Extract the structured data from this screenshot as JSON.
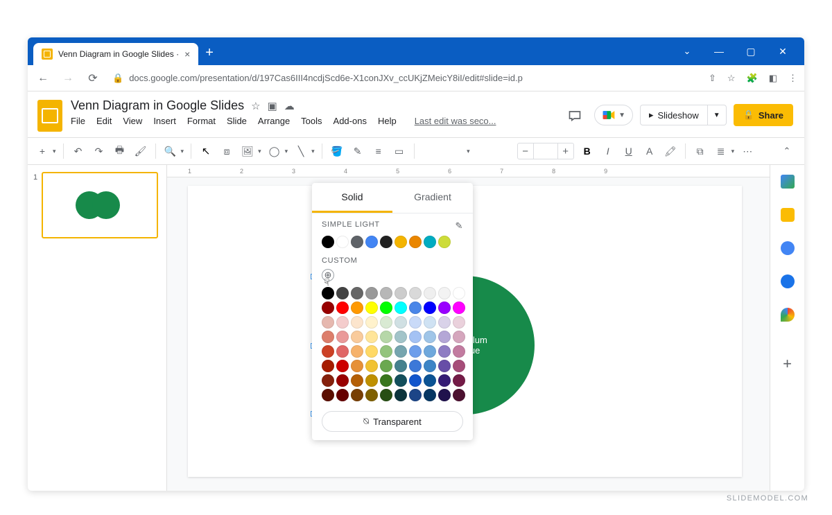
{
  "browser": {
    "tab_title": "Venn Diagram in Google Slides ·",
    "url": "docs.google.com/presentation/d/197Cas6III4ncdjScd6e-X1conJXv_ccUKjZMeicY8iI/edit#slide=id.p"
  },
  "header": {
    "doc_title": "Venn Diagram in Google Slides",
    "last_edit": "Last edit was seco...",
    "slideshow_label": "Slideshow",
    "share_label": "Share"
  },
  "menus": [
    "File",
    "Edit",
    "View",
    "Insert",
    "Format",
    "Slide",
    "Arrange",
    "Tools",
    "Add-ons",
    "Help"
  ],
  "ruler": [
    1,
    2,
    3,
    4,
    5,
    6,
    7,
    8,
    9
  ],
  "thumb": {
    "num": "1"
  },
  "venn": {
    "circle1_color": "#3acb7a",
    "circle2_color": "#178a4a",
    "circle2_label_line1": "Vestibulum",
    "circle2_label_line2": "congue"
  },
  "picker": {
    "tab_solid": "Solid",
    "tab_gradient": "Gradient",
    "section_simple": "SIMPLE LIGHT",
    "section_custom": "CUSTOM",
    "transparent_label": "Transparent",
    "simple_colors": [
      "#000000",
      "#ffffff",
      "#5f6368",
      "#4285f4",
      "#212121",
      "#f4b400",
      "#ea8600",
      "#00acc1",
      "#cddc39"
    ],
    "grid_row0": [
      "#000000",
      "#434343",
      "#666666",
      "#999999",
      "#b7b7b7",
      "#cccccc",
      "#d9d9d9",
      "#efefef",
      "#f3f3f3",
      "#ffffff"
    ],
    "grid_row1": [
      "#980000",
      "#ff0000",
      "#ff9900",
      "#ffff00",
      "#00ff00",
      "#00ffff",
      "#4a86e8",
      "#0000ff",
      "#9900ff",
      "#ff00ff"
    ],
    "grid_row2": [
      "#e6b8af",
      "#f4cccc",
      "#fce5cd",
      "#fff2cc",
      "#d9ead3",
      "#d0e0e3",
      "#c9daf8",
      "#cfe2f3",
      "#d9d2e9",
      "#ead1dc"
    ],
    "grid_row3": [
      "#dd7e6b",
      "#ea9999",
      "#f9cb9c",
      "#ffe599",
      "#b6d7a8",
      "#a2c4c9",
      "#a4c2f4",
      "#9fc5e8",
      "#b4a7d6",
      "#d5a6bd"
    ],
    "grid_row4": [
      "#cc4125",
      "#e06666",
      "#f6b26b",
      "#ffd966",
      "#93c47d",
      "#76a5af",
      "#6d9eeb",
      "#6fa8dc",
      "#8e7cc3",
      "#c27ba0"
    ],
    "grid_row5": [
      "#a61c00",
      "#cc0000",
      "#e69138",
      "#f1c232",
      "#6aa84f",
      "#45818e",
      "#3c78d8",
      "#3d85c6",
      "#674ea7",
      "#a64d79"
    ],
    "grid_row6": [
      "#85200c",
      "#990000",
      "#b45f06",
      "#bf9000",
      "#38761d",
      "#134f5c",
      "#1155cc",
      "#0b5394",
      "#351c75",
      "#741b47"
    ],
    "grid_row7": [
      "#5b0f00",
      "#660000",
      "#783f04",
      "#7f6000",
      "#274e13",
      "#0c343d",
      "#1c4587",
      "#073763",
      "#20124d",
      "#4c1130"
    ]
  },
  "watermark": "SLIDEMODEL.COM"
}
